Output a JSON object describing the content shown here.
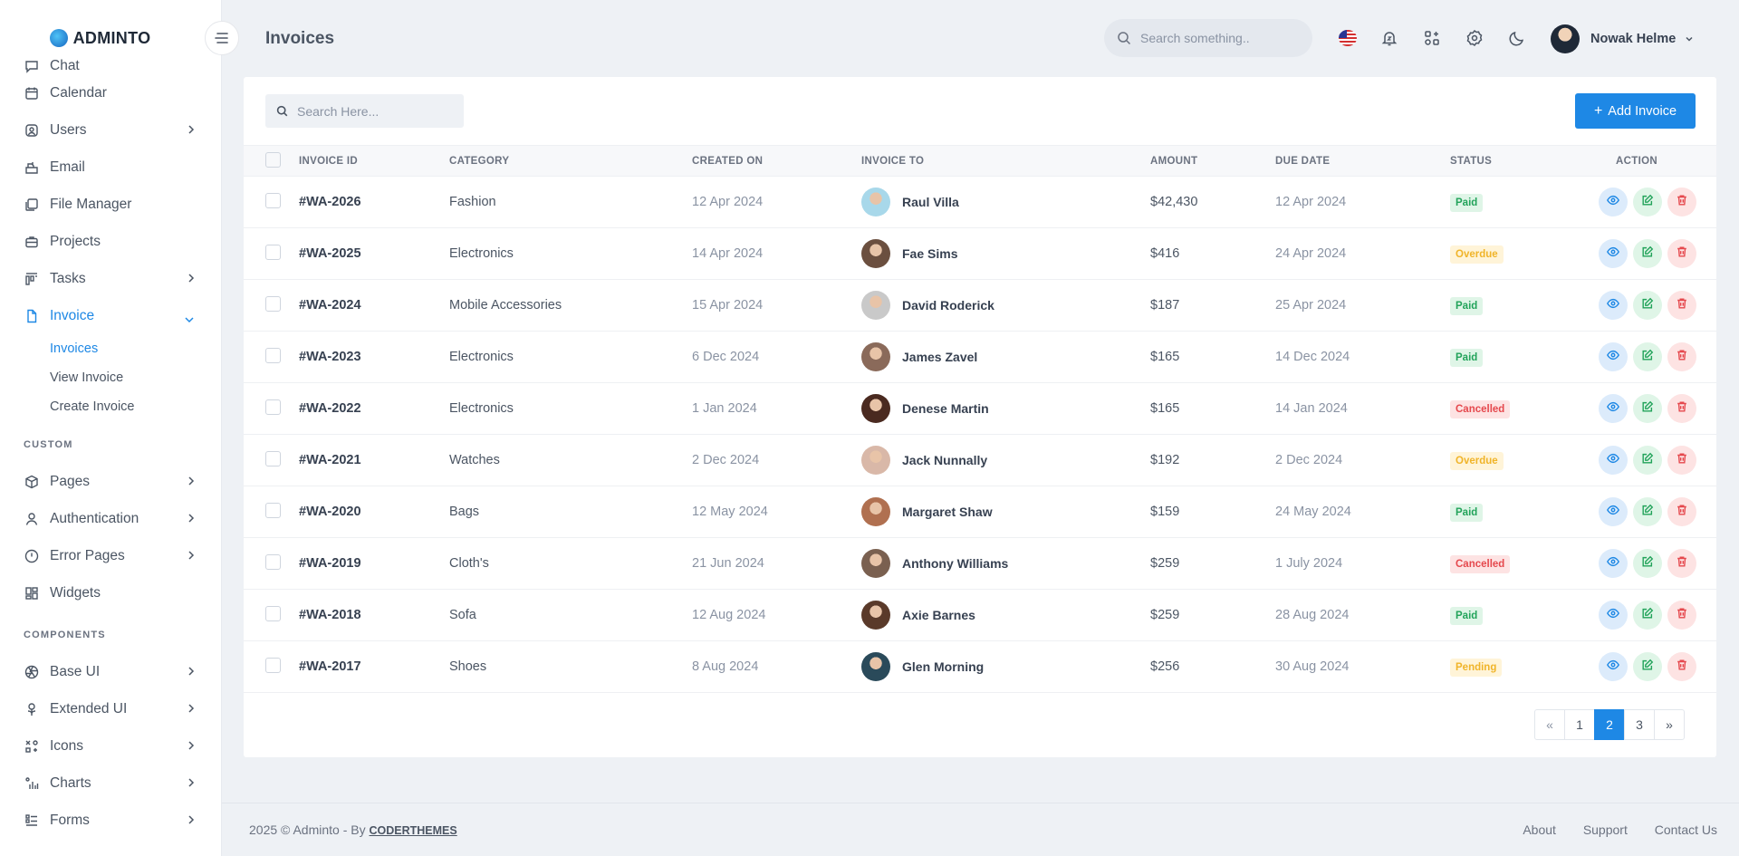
{
  "brand": {
    "name": "ADMINTO"
  },
  "header": {
    "title": "Invoices",
    "search_placeholder": "Search something..",
    "user_name": "Nowak Helme"
  },
  "sidebar": {
    "top_partial": "Chat",
    "items": [
      {
        "label": "Calendar",
        "icon": "calendar-icon",
        "chevron": false
      },
      {
        "label": "Users",
        "icon": "user-circle-icon",
        "chevron": true
      },
      {
        "label": "Email",
        "icon": "email-icon",
        "chevron": false
      },
      {
        "label": "File Manager",
        "icon": "folder-icon",
        "chevron": false
      },
      {
        "label": "Projects",
        "icon": "briefcase-icon",
        "chevron": false
      },
      {
        "label": "Tasks",
        "icon": "tasks-icon",
        "chevron": true
      },
      {
        "label": "Invoice",
        "icon": "file-icon",
        "chevron": true
      }
    ],
    "invoice_sub": [
      "Invoices",
      "View Invoice",
      "Create Invoice"
    ],
    "section_custom": "CUSTOM",
    "custom_items": [
      {
        "label": "Pages",
        "icon": "box-icon"
      },
      {
        "label": "Authentication",
        "icon": "user-icon"
      },
      {
        "label": "Error Pages",
        "icon": "alert-circle-icon"
      },
      {
        "label": "Widgets",
        "icon": "widgets-icon"
      }
    ],
    "section_components": "COMPONENTS",
    "component_items": [
      {
        "label": "Base UI",
        "icon": "aperture-icon"
      },
      {
        "label": "Extended UI",
        "icon": "flower-icon"
      },
      {
        "label": "Icons",
        "icon": "icons-icon"
      },
      {
        "label": "Charts",
        "icon": "chart-icon"
      },
      {
        "label": "Forms",
        "icon": "forms-icon"
      }
    ]
  },
  "table": {
    "search_placeholder": "Search Here...",
    "add_label": "Add Invoice",
    "columns": [
      "INVOICE ID",
      "CATEGORY",
      "CREATED ON",
      "INVOICE TO",
      "AMOUNT",
      "DUE DATE",
      "STATUS",
      "ACTION"
    ],
    "rows": [
      {
        "id": "#WA-2026",
        "category": "Fashion",
        "created": "12 Apr 2024",
        "to": "Raul Villa",
        "amount": "$42,430",
        "due": "12 Apr 2024",
        "status": "Paid",
        "avatar": "#a8d8ea"
      },
      {
        "id": "#WA-2025",
        "category": "Electronics",
        "created": "14 Apr 2024",
        "to": "Fae Sims",
        "amount": "$416",
        "due": "24 Apr 2024",
        "status": "Overdue",
        "avatar": "#6b4f3f"
      },
      {
        "id": "#WA-2024",
        "category": "Mobile Accessories",
        "created": "15 Apr 2024",
        "to": "David Roderick",
        "amount": "$187",
        "due": "25 Apr 2024",
        "status": "Paid",
        "avatar": "#c9c9c9"
      },
      {
        "id": "#WA-2023",
        "category": "Electronics",
        "created": "6 Dec 2024",
        "to": "James Zavel",
        "amount": "$165",
        "due": "14 Dec 2024",
        "status": "Paid",
        "avatar": "#8a6a5a"
      },
      {
        "id": "#WA-2022",
        "category": "Electronics",
        "created": "1 Jan 2024",
        "to": "Denese Martin",
        "amount": "$165",
        "due": "14 Jan 2024",
        "status": "Cancelled",
        "avatar": "#4a2a20"
      },
      {
        "id": "#WA-2021",
        "category": "Watches",
        "created": "2 Dec 2024",
        "to": "Jack Nunnally",
        "amount": "$192",
        "due": "2 Dec 2024",
        "status": "Overdue",
        "avatar": "#d9b8a8"
      },
      {
        "id": "#WA-2020",
        "category": "Bags",
        "created": "12 May 2024",
        "to": "Margaret Shaw",
        "amount": "$159",
        "due": "24 May 2024",
        "status": "Paid",
        "avatar": "#b07050"
      },
      {
        "id": "#WA-2019",
        "category": "Cloth's",
        "created": "21 Jun 2024",
        "to": "Anthony Williams",
        "amount": "$259",
        "due": "1 July 2024",
        "status": "Cancelled",
        "avatar": "#7a6050"
      },
      {
        "id": "#WA-2018",
        "category": "Sofa",
        "created": "12 Aug 2024",
        "to": "Axie Barnes",
        "amount": "$259",
        "due": "28 Aug 2024",
        "status": "Paid",
        "avatar": "#5a3a2a"
      },
      {
        "id": "#WA-2017",
        "category": "Shoes",
        "created": "8 Aug 2024",
        "to": "Glen Morning",
        "amount": "$256",
        "due": "30 Aug 2024",
        "status": "Pending",
        "avatar": "#2a4a5a"
      }
    ]
  },
  "pagination": {
    "prev": "«",
    "pages": [
      "1",
      "2",
      "3"
    ],
    "current": "2",
    "next": "»"
  },
  "footer": {
    "copyright": "2025 © Adminto - By",
    "brand_link": "CODERTHEMES",
    "links": [
      "About",
      "Support",
      "Contact Us"
    ]
  },
  "colors": {
    "accent": "#1e88e5",
    "paid": "#22a35a",
    "overdue": "#f0b429",
    "cancelled": "#e5484d"
  }
}
